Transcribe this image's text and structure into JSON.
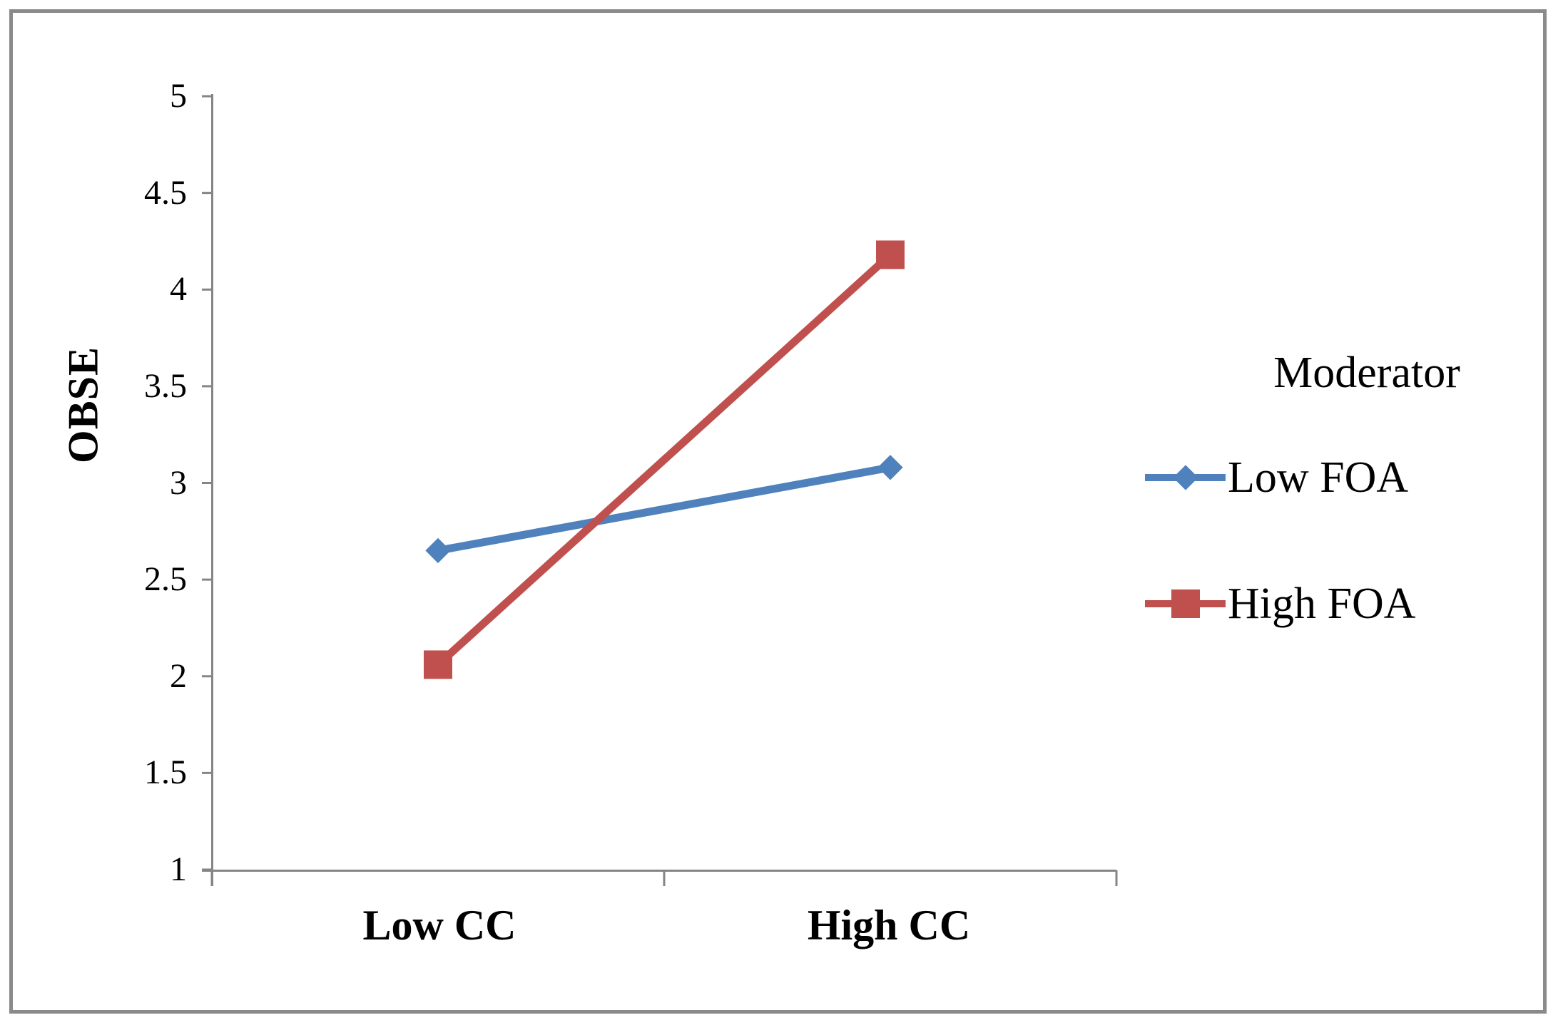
{
  "figure": {
    "background": "#ffffff",
    "border_color": "#8a8a8a",
    "axis_color": "#858585",
    "text_color": "#000000"
  },
  "chart_data": {
    "type": "line",
    "title": "",
    "xlabel": "",
    "ylabel": "OBSE",
    "categories": [
      "Low CC",
      "High CC"
    ],
    "series": [
      {
        "name": "Low FOA",
        "marker": "diamond",
        "color": "#4F81BD",
        "values": [
          2.65,
          3.08
        ]
      },
      {
        "name": "High FOA",
        "marker": "square",
        "color": "#C0504D",
        "values": [
          2.06,
          4.18
        ]
      }
    ],
    "ylim": [
      1,
      5
    ],
    "ytick_step": 0.5,
    "ytick_labels": [
      "5",
      "4.5",
      "4",
      "3.5",
      "3",
      "2.5",
      "2",
      "1.5",
      "1"
    ],
    "grid": false,
    "legend_position": "right",
    "legend_title": "Moderator"
  }
}
